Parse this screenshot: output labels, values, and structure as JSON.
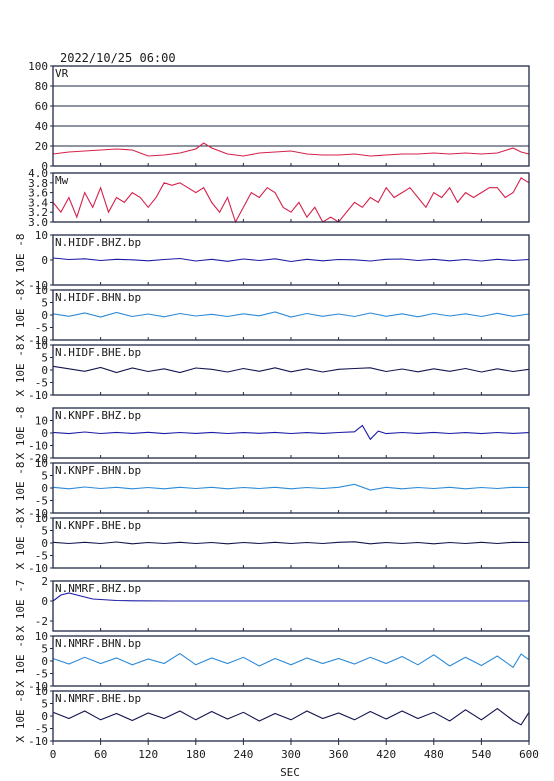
{
  "header": {
    "title": "2022/10/25 06:00"
  },
  "colors": {
    "frame": "#1f2a44",
    "vr": "#d6204a",
    "mw": "#d6204a",
    "bhz": "#1c1ca6",
    "bhn": "#2c8ad8",
    "bhe": "#141450"
  },
  "chart_data": {
    "type": "line",
    "xlabel": "SEC",
    "xlim": [
      0,
      600
    ],
    "xticks": [
      "0",
      "60",
      "120",
      "180",
      "240",
      "300",
      "360",
      "420",
      "480",
      "540",
      "600"
    ],
    "panels": [
      {
        "name": "VR",
        "ylabel": "",
        "ylim": [
          0,
          100
        ],
        "yticks": [
          "100",
          "80",
          "60",
          "40",
          "20",
          "0"
        ],
        "ytick_values": [
          100,
          80,
          60,
          40,
          20,
          0
        ],
        "grid": true,
        "color_key": "vr",
        "x": [
          0,
          20,
          40,
          60,
          80,
          100,
          120,
          140,
          160,
          180,
          190,
          200,
          220,
          240,
          260,
          280,
          300,
          320,
          340,
          360,
          380,
          400,
          420,
          440,
          460,
          480,
          500,
          520,
          540,
          560,
          580,
          590,
          600
        ],
        "y": [
          12,
          14,
          15,
          16,
          17,
          16,
          10,
          11,
          13,
          17,
          23,
          18,
          12,
          10,
          13,
          14,
          15,
          12,
          11,
          11,
          12,
          10,
          11,
          12,
          12,
          13,
          12,
          13,
          12,
          13,
          18,
          14,
          12
        ]
      },
      {
        "name": "Mw",
        "ylabel": "",
        "ylim": [
          3.0,
          4.0
        ],
        "yticks": [
          "4.0",
          "3.8",
          "3.6",
          "3.4",
          "3.2",
          "3.0"
        ],
        "ytick_values": [
          4.0,
          3.8,
          3.6,
          3.4,
          3.2,
          3.0
        ],
        "grid": false,
        "color_key": "mw",
        "x": [
          0,
          10,
          20,
          30,
          40,
          50,
          60,
          70,
          80,
          90,
          100,
          110,
          120,
          130,
          140,
          150,
          160,
          170,
          180,
          190,
          200,
          210,
          220,
          230,
          240,
          250,
          260,
          270,
          280,
          290,
          300,
          310,
          320,
          330,
          340,
          350,
          360,
          370,
          380,
          390,
          400,
          410,
          420,
          430,
          440,
          450,
          460,
          470,
          480,
          490,
          500,
          510,
          520,
          530,
          540,
          550,
          560,
          570,
          580,
          590,
          600
        ],
        "y": [
          3.4,
          3.2,
          3.5,
          3.1,
          3.6,
          3.3,
          3.7,
          3.2,
          3.5,
          3.4,
          3.6,
          3.5,
          3.3,
          3.5,
          3.8,
          3.75,
          3.8,
          3.7,
          3.6,
          3.7,
          3.4,
          3.2,
          3.5,
          3.0,
          3.3,
          3.6,
          3.5,
          3.7,
          3.6,
          3.3,
          3.2,
          3.4,
          3.1,
          3.3,
          3.0,
          3.1,
          3.0,
          3.2,
          3.4,
          3.3,
          3.5,
          3.4,
          3.7,
          3.5,
          3.6,
          3.7,
          3.5,
          3.3,
          3.6,
          3.5,
          3.7,
          3.4,
          3.6,
          3.5,
          3.6,
          3.7,
          3.7,
          3.5,
          3.6,
          3.9,
          3.8
        ]
      },
      {
        "name": "N.HIDF.BHZ.bp",
        "ylabel": "X 10E -8",
        "ylim": [
          -10,
          10
        ],
        "yticks": [
          "10",
          "0",
          "-10"
        ],
        "ytick_values": [
          10,
          0,
          -10
        ],
        "grid": false,
        "color_key": "bhz",
        "x": [
          0,
          20,
          40,
          60,
          80,
          100,
          120,
          140,
          160,
          180,
          200,
          220,
          240,
          260,
          280,
          300,
          320,
          340,
          360,
          380,
          400,
          420,
          440,
          460,
          480,
          500,
          520,
          540,
          560,
          580,
          600
        ],
        "y": [
          0.8,
          0.2,
          0.5,
          -0.2,
          0.3,
          0.1,
          -0.3,
          0.2,
          0.6,
          -0.4,
          0.3,
          -0.5,
          0.4,
          -0.2,
          0.5,
          -0.6,
          0.3,
          -0.3,
          0.2,
          0.1,
          -0.4,
          0.3,
          0.4,
          -0.2,
          0.3,
          -0.3,
          0.2,
          -0.4,
          0.3,
          -0.2,
          0.2
        ]
      },
      {
        "name": "N.HIDF.BHN.bp",
        "ylabel": "X 10E -8",
        "ylim": [
          -10,
          10
        ],
        "yticks": [
          "10",
          "5",
          "0",
          "-5",
          "-10"
        ],
        "ytick_values": [
          10,
          5,
          0,
          -5,
          -10
        ],
        "grid": false,
        "color_key": "bhn",
        "x": [
          0,
          20,
          40,
          60,
          80,
          100,
          120,
          140,
          160,
          180,
          200,
          220,
          240,
          260,
          280,
          300,
          320,
          340,
          360,
          380,
          400,
          420,
          440,
          460,
          480,
          500,
          520,
          540,
          560,
          580,
          600
        ],
        "y": [
          0.5,
          -0.5,
          0.8,
          -0.8,
          1.0,
          -0.6,
          0.4,
          -0.7,
          0.6,
          -0.4,
          0.3,
          -0.6,
          0.5,
          -0.3,
          1.2,
          -0.8,
          0.6,
          -0.5,
          0.4,
          -0.6,
          0.8,
          -0.5,
          0.5,
          -0.7,
          0.6,
          -0.4,
          0.5,
          -0.6,
          0.7,
          -0.5,
          0.4
        ]
      },
      {
        "name": "N.HIDF.BHE.bp",
        "ylabel": "X 10E -8",
        "ylim": [
          -10,
          10
        ],
        "yticks": [
          "10",
          "5",
          "0",
          "-5",
          "-10"
        ],
        "ytick_values": [
          10,
          5,
          0,
          -5,
          -10
        ],
        "grid": false,
        "color_key": "bhe",
        "x": [
          0,
          20,
          40,
          60,
          80,
          100,
          120,
          140,
          160,
          180,
          200,
          220,
          240,
          260,
          280,
          300,
          320,
          340,
          360,
          380,
          400,
          420,
          440,
          460,
          480,
          500,
          520,
          540,
          560,
          580,
          600
        ],
        "y": [
          1.5,
          0.5,
          -0.5,
          1.0,
          -1.0,
          0.8,
          -0.6,
          0.5,
          -1.0,
          0.8,
          0.3,
          -0.8,
          0.6,
          -0.5,
          0.9,
          -0.7,
          0.5,
          -0.8,
          0.3,
          0.6,
          0.9,
          -0.6,
          0.4,
          -0.7,
          0.5,
          -0.5,
          0.6,
          -0.8,
          0.5,
          -0.6,
          0.3
        ]
      },
      {
        "name": "N.KNPF.BHZ.bp",
        "ylabel": "X 10E -8",
        "ylim": [
          -20,
          20
        ],
        "yticks": [
          "10",
          "0",
          "-10",
          "-20"
        ],
        "ytick_values": [
          10,
          0,
          -10,
          -20
        ],
        "grid": false,
        "color_key": "bhz",
        "x": [
          0,
          20,
          40,
          60,
          80,
          100,
          120,
          140,
          160,
          180,
          200,
          220,
          240,
          260,
          280,
          300,
          320,
          340,
          360,
          380,
          390,
          400,
          410,
          420,
          440,
          460,
          480,
          500,
          520,
          540,
          560,
          580,
          600
        ],
        "y": [
          0.5,
          -0.5,
          0.8,
          -0.4,
          0.5,
          -0.3,
          0.6,
          -0.5,
          0.4,
          -0.3,
          0.5,
          -0.4,
          0.3,
          -0.2,
          0.5,
          -0.4,
          0.3,
          -0.3,
          0.4,
          1.0,
          6.0,
          -5.0,
          1.5,
          -0.5,
          0.4,
          -0.3,
          0.5,
          -0.4,
          0.3,
          -0.5,
          0.4,
          -0.3,
          0.3
        ]
      },
      {
        "name": "N.KNPF.BHN.bp",
        "ylabel": "X 10E -8",
        "ylim": [
          -10,
          10
        ],
        "yticks": [
          "10",
          "5",
          "0",
          "-5",
          "-10"
        ],
        "ytick_values": [
          10,
          5,
          0,
          -5,
          -10
        ],
        "grid": false,
        "color_key": "bhn",
        "x": [
          0,
          20,
          40,
          60,
          80,
          100,
          120,
          140,
          160,
          180,
          200,
          220,
          240,
          260,
          280,
          300,
          320,
          340,
          360,
          380,
          400,
          420,
          440,
          460,
          480,
          500,
          520,
          540,
          560,
          580,
          600
        ],
        "y": [
          0.3,
          -0.3,
          0.4,
          -0.2,
          0.3,
          -0.3,
          0.2,
          -0.3,
          0.3,
          -0.2,
          0.3,
          -0.3,
          0.2,
          -0.2,
          0.3,
          -0.3,
          0.2,
          -0.2,
          0.3,
          1.5,
          -0.8,
          0.3,
          -0.3,
          0.2,
          -0.2,
          0.3,
          -0.3,
          0.2,
          -0.2,
          0.3,
          0.2
        ]
      },
      {
        "name": "N.KNPF.BHE.bp",
        "ylabel": "X 10E -8",
        "ylim": [
          -10,
          10
        ],
        "yticks": [
          "10",
          "5",
          "0",
          "-5",
          "-10"
        ],
        "ytick_values": [
          10,
          5,
          0,
          -5,
          -10
        ],
        "grid": false,
        "color_key": "bhe",
        "x": [
          0,
          20,
          40,
          60,
          80,
          100,
          120,
          140,
          160,
          180,
          200,
          220,
          240,
          260,
          280,
          300,
          320,
          340,
          360,
          380,
          400,
          420,
          440,
          460,
          480,
          500,
          520,
          540,
          560,
          580,
          600
        ],
        "y": [
          0.3,
          -0.2,
          0.3,
          -0.2,
          0.4,
          -0.3,
          0.2,
          -0.2,
          0.3,
          -0.2,
          0.2,
          -0.3,
          0.2,
          -0.2,
          0.3,
          -0.2,
          0.2,
          -0.2,
          0.3,
          0.5,
          -0.3,
          0.2,
          -0.2,
          0.2,
          -0.3,
          0.2,
          -0.2,
          0.3,
          -0.2,
          0.3,
          0.2
        ]
      },
      {
        "name": "N.NMRF.BHZ.bp",
        "ylabel": "X 10E -7",
        "ylim": [
          -3,
          2
        ],
        "yticks": [
          "2",
          "0",
          "-2"
        ],
        "ytick_values": [
          2,
          0,
          -2
        ],
        "grid": false,
        "color_key": "bhz",
        "x": [
          0,
          10,
          20,
          30,
          40,
          50,
          60,
          70,
          80,
          100,
          150,
          200,
          300,
          400,
          500,
          600
        ],
        "y": [
          0.0,
          0.6,
          0.8,
          0.6,
          0.4,
          0.2,
          0.15,
          0.1,
          0.05,
          0.02,
          0.0,
          0.0,
          0.0,
          0.0,
          0.0,
          0.0
        ]
      },
      {
        "name": "N.NMRF.BHN.bp",
        "ylabel": "X 10E -8",
        "ylim": [
          -10,
          10
        ],
        "yticks": [
          "10",
          "5",
          "0",
          "-5",
          "-10"
        ],
        "ytick_values": [
          10,
          5,
          0,
          -5,
          -10
        ],
        "grid": false,
        "color_key": "bhn",
        "x": [
          0,
          20,
          40,
          60,
          80,
          100,
          120,
          140,
          160,
          180,
          200,
          220,
          240,
          260,
          280,
          300,
          320,
          340,
          360,
          380,
          400,
          420,
          440,
          460,
          480,
          500,
          520,
          540,
          560,
          580,
          590,
          600
        ],
        "y": [
          1.0,
          -1.2,
          1.5,
          -1.0,
          1.2,
          -1.5,
          0.8,
          -1.0,
          3.0,
          -1.5,
          1.2,
          -1.0,
          1.5,
          -2.0,
          1.0,
          -1.5,
          1.2,
          -1.0,
          1.0,
          -1.2,
          1.5,
          -1.0,
          1.8,
          -1.5,
          2.5,
          -2.0,
          1.5,
          -1.8,
          2.0,
          -2.5,
          2.8,
          0.5
        ]
      },
      {
        "name": "N.NMRF.BHE.bp",
        "ylabel": "X 10E -8",
        "ylim": [
          -10,
          10
        ],
        "yticks": [
          "10",
          "5",
          "0",
          "-5",
          "-10"
        ],
        "ytick_values": [
          10,
          5,
          0,
          -5,
          -10
        ],
        "grid": false,
        "color_key": "bhe",
        "x": [
          0,
          20,
          40,
          60,
          80,
          100,
          120,
          140,
          160,
          180,
          200,
          220,
          240,
          260,
          280,
          300,
          320,
          340,
          360,
          380,
          400,
          420,
          440,
          460,
          480,
          500,
          520,
          540,
          560,
          580,
          590,
          600
        ],
        "y": [
          1.5,
          -1.0,
          2.0,
          -1.5,
          1.0,
          -1.8,
          1.2,
          -1.0,
          2.0,
          -1.5,
          1.8,
          -1.2,
          1.5,
          -2.0,
          1.0,
          -1.5,
          2.0,
          -1.0,
          1.2,
          -1.5,
          1.8,
          -1.2,
          2.0,
          -1.0,
          1.5,
          -2.0,
          2.5,
          -1.5,
          3.0,
          -1.8,
          -3.5,
          1.5
        ]
      }
    ]
  }
}
